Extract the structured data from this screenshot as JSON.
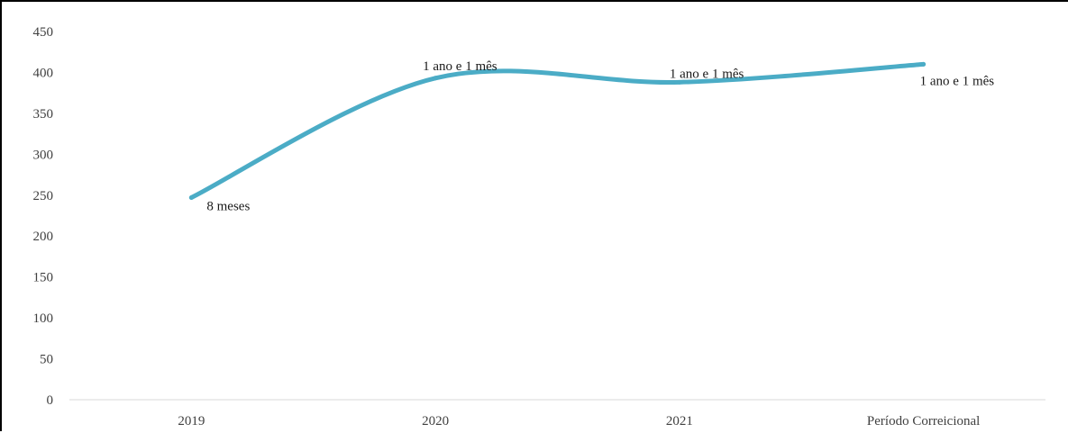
{
  "colors": {
    "series": "#4bacc6",
    "axis": "#d9d9d9",
    "text": "#404040",
    "frame": "#000000"
  },
  "chart_data": {
    "type": "line",
    "smooth": true,
    "categories": [
      "2019",
      "2020",
      "2021",
      "Período Correicional"
    ],
    "series": [
      {
        "values": [
          247,
          393,
          388,
          410
        ],
        "data_labels": [
          "8 meses",
          "1 ano e 1 mês",
          "1 ano e 1 mês",
          "1 ano e 1 mês"
        ]
      }
    ],
    "ylim": [
      0,
      450
    ],
    "yticks": [
      0,
      50,
      100,
      150,
      200,
      250,
      300,
      350,
      400,
      450
    ],
    "ytick_labels": [
      "0",
      "50",
      "100",
      "150",
      "200",
      "250",
      "300",
      "350",
      "400",
      "450"
    ],
    "grid": false,
    "legend": "none",
    "title": "",
    "xlabel": "",
    "ylabel": ""
  }
}
